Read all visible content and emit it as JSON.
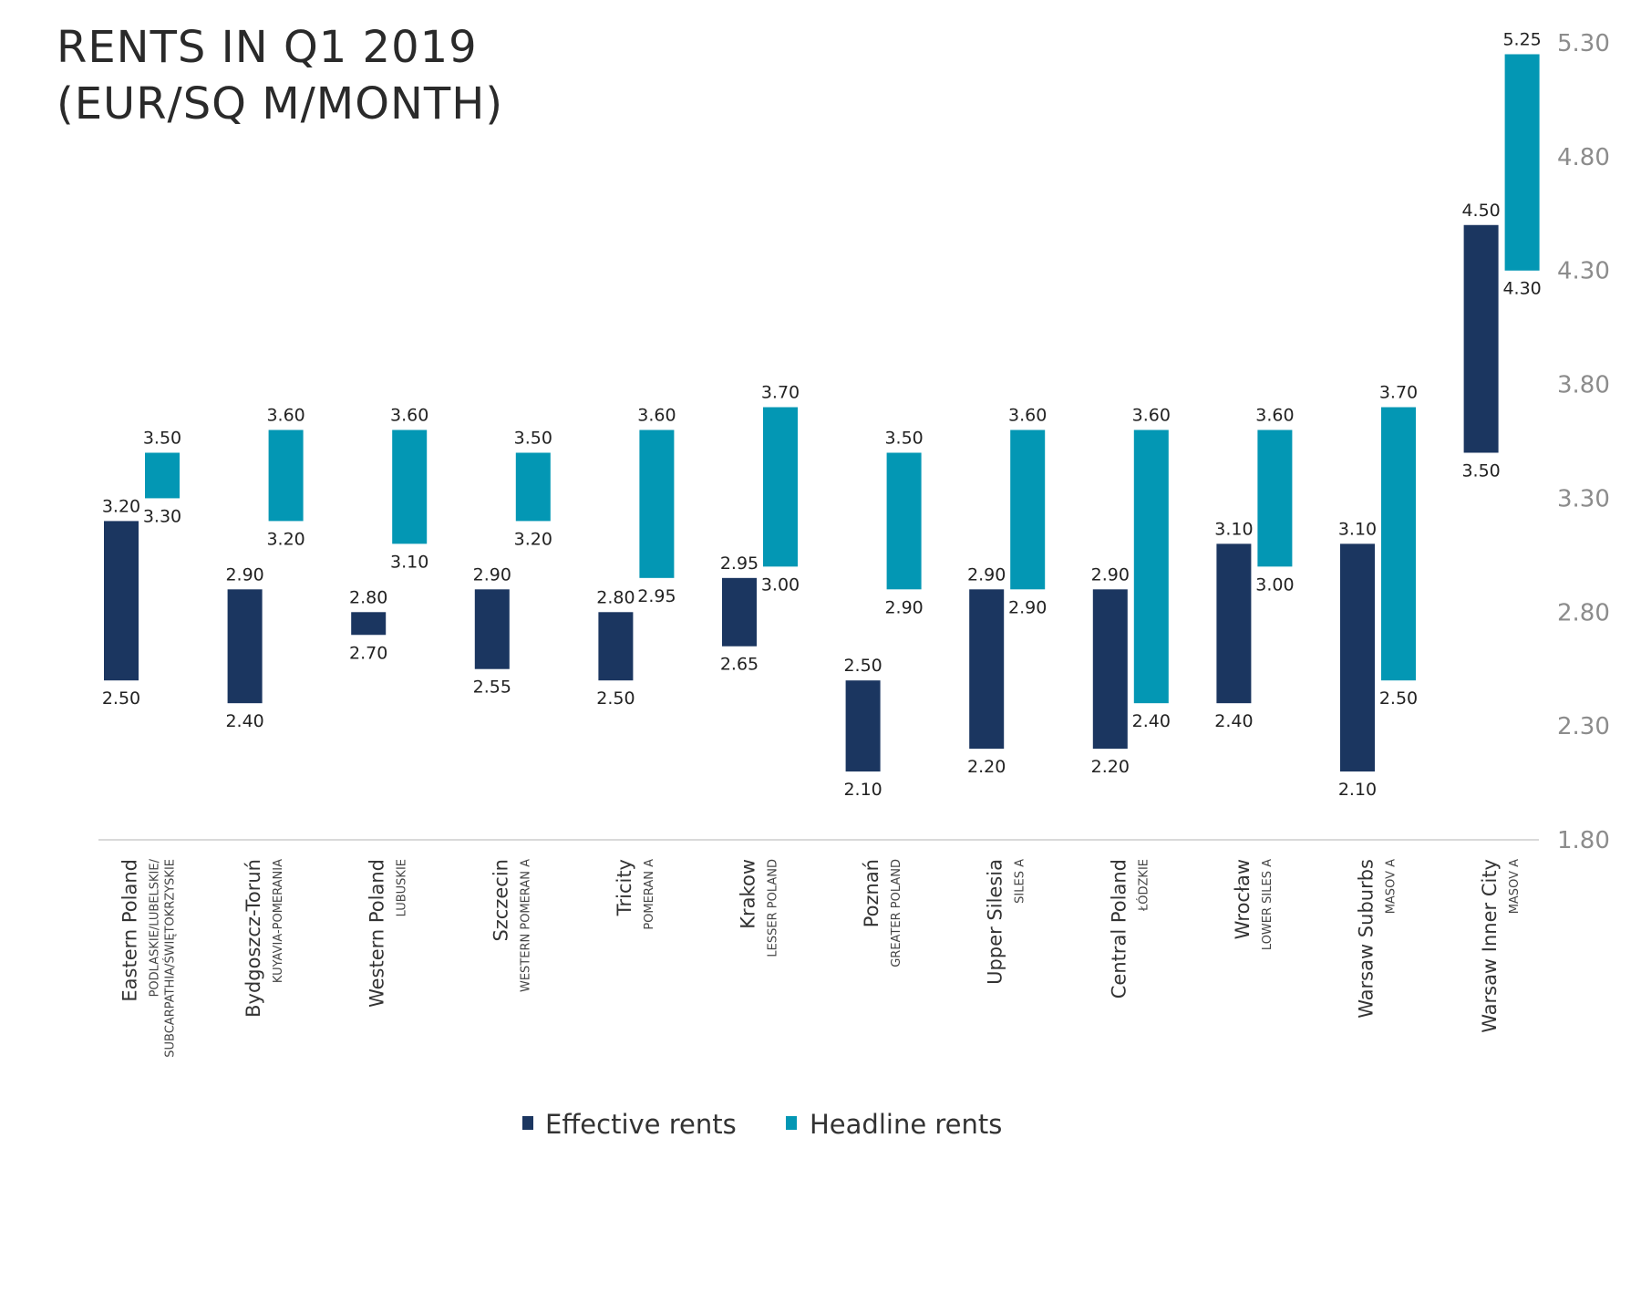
{
  "title_lines": [
    "RENTS IN Q1 2019",
    "(EUR/SQ M/MONTH)"
  ],
  "colors": {
    "effective": "#1b3660",
    "headline": "#0397b4",
    "axis": "#d9d9d9",
    "tick": "#8c8c8c"
  },
  "legend": [
    {
      "label": "Effective rents",
      "series": "effective"
    },
    {
      "label": "Headline rents",
      "series": "headline"
    }
  ],
  "chart_data": {
    "type": "bar",
    "subtype": "floating-range",
    "title": "RENTS IN Q1 2019 (EUR/SQ M/MONTH)",
    "yaxis_position": "right",
    "ylim": [
      1.8,
      5.3
    ],
    "yticks": [
      "1.80",
      "2.30",
      "2.80",
      "3.30",
      "3.80",
      "4.30",
      "4.80",
      "5.30"
    ],
    "grid": false,
    "legend_position": "bottom",
    "categories": [
      {
        "name": "Eastern Poland",
        "sub": [
          "PODLASKIE/LUBELSKIE/",
          "SUBCARPATHIA/ŚWIĘTOKRZYSKIE"
        ]
      },
      {
        "name": "Bydgoszcz-Toruń",
        "sub": [
          "KUYAVIA-POMERANIA"
        ]
      },
      {
        "name": "Western Poland",
        "sub": [
          "LUBUSKIE"
        ]
      },
      {
        "name": "Szczecin",
        "sub": [
          "WESTERN POMERAN A"
        ]
      },
      {
        "name": "Tricity",
        "sub": [
          "POMERAN A"
        ]
      },
      {
        "name": "Krakow",
        "sub": [
          "LESSER POLAND"
        ]
      },
      {
        "name": "Poznań",
        "sub": [
          "GREATER POLAND"
        ]
      },
      {
        "name": "Upper Silesia",
        "sub": [
          "SILES A"
        ]
      },
      {
        "name": "Central Poland",
        "sub": [
          "ŁÓDZKIE"
        ]
      },
      {
        "name": "Wrocław",
        "sub": [
          "LOWER SILES A"
        ]
      },
      {
        "name": "Warsaw Suburbs",
        "sub": [
          "MASOV A"
        ]
      },
      {
        "name": "Warsaw Inner City",
        "sub": [
          "MASOV A"
        ]
      }
    ],
    "series": [
      {
        "name": "Effective rents",
        "key": "effective",
        "ranges": [
          {
            "low": 2.5,
            "high": 3.2,
            "low_label": "2.50",
            "high_label": "3.20"
          },
          {
            "low": 2.4,
            "high": 2.9,
            "low_label": "2.40",
            "high_label": "2.90"
          },
          {
            "low": 2.7,
            "high": 2.8,
            "low_label": "2.70",
            "high_label": "2.80"
          },
          {
            "low": 2.55,
            "high": 2.9,
            "low_label": "2.55",
            "high_label": "2.90"
          },
          {
            "low": 2.5,
            "high": 2.8,
            "low_label": "2.50",
            "high_label": "2.80"
          },
          {
            "low": 2.65,
            "high": 2.95,
            "low_label": "2.65",
            "high_label": "2.95"
          },
          {
            "low": 2.1,
            "high": 2.5,
            "low_label": "2.10",
            "high_label": "2.50"
          },
          {
            "low": 2.2,
            "high": 2.9,
            "low_label": "2.20",
            "high_label": "2.90"
          },
          {
            "low": 2.2,
            "high": 2.9,
            "low_label": "2.20",
            "high_label": "2.90"
          },
          {
            "low": 2.4,
            "high": 3.1,
            "low_label": "2.40",
            "high_label": "3.10"
          },
          {
            "low": 2.1,
            "high": 3.1,
            "low_label": "2.10",
            "high_label": "3.10"
          },
          {
            "low": 3.5,
            "high": 4.5,
            "low_label": "3.50",
            "high_label": "4.50"
          }
        ]
      },
      {
        "name": "Headline rents",
        "key": "headline",
        "ranges": [
          {
            "low": 3.3,
            "high": 3.5,
            "low_label": "3.30",
            "high_label": "3.50"
          },
          {
            "low": 3.2,
            "high": 3.6,
            "low_label": "3.20",
            "high_label": "3.60"
          },
          {
            "low": 3.1,
            "high": 3.6,
            "low_label": "3.10",
            "high_label": "3.60"
          },
          {
            "low": 3.2,
            "high": 3.5,
            "low_label": "3.20",
            "high_label": "3.50"
          },
          {
            "low": 2.95,
            "high": 3.6,
            "low_label": "2.95",
            "high_label": "3.60"
          },
          {
            "low": 3.0,
            "high": 3.7,
            "low_label": "3.00",
            "high_label": "3.70"
          },
          {
            "low": 2.9,
            "high": 3.5,
            "low_label": "2.90",
            "high_label": "3.50"
          },
          {
            "low": 2.9,
            "high": 3.6,
            "low_label": "2.90",
            "high_label": "3.60"
          },
          {
            "low": 2.4,
            "high": 3.6,
            "low_label": "2.40",
            "high_label": "3.60"
          },
          {
            "low": 3.0,
            "high": 3.6,
            "low_label": "3.00",
            "high_label": "3.60"
          },
          {
            "low": 2.5,
            "high": 3.7,
            "low_label": "2.50",
            "high_label": "3.70"
          },
          {
            "low": 4.3,
            "high": 5.25,
            "low_label": "4.30",
            "high_label": "5.25"
          }
        ]
      }
    ]
  }
}
